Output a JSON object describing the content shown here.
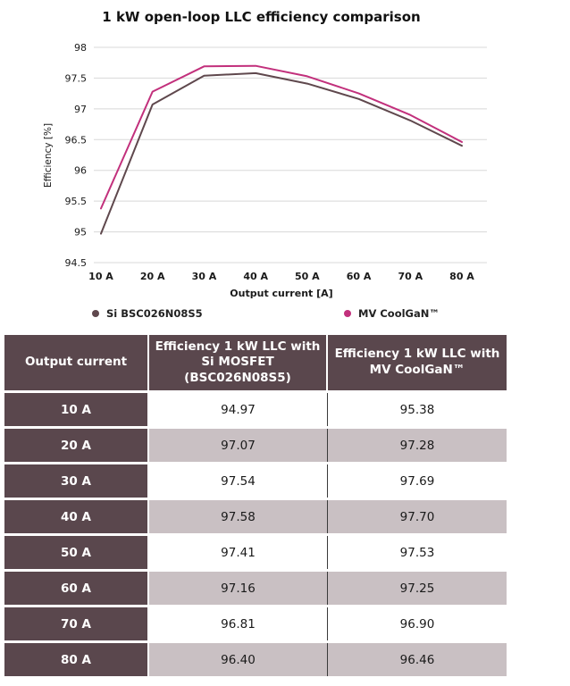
{
  "colors": {
    "si_series": "#5f484d",
    "gan_series": "#c2307c",
    "gridline": "#d8d8d8",
    "table_header_bg": "#5a474d",
    "table_alt_row_bg": "#c9c0c3",
    "table_divider": "#3a3a3a",
    "text_dark": "#1a1a1a"
  },
  "chart_data": {
    "type": "line",
    "title": "1 kW open-loop LLC efficiency comparison",
    "xlabel": "Output current [A]",
    "ylabel": "Efficiency [%]",
    "x": [
      10,
      20,
      30,
      40,
      50,
      60,
      70,
      80
    ],
    "x_tick_labels": [
      "10 A",
      "20 A",
      "30 A",
      "40 A",
      "50 A",
      "60 A",
      "70 A",
      "80 A"
    ],
    "yticks": [
      98,
      97.5,
      97,
      96.5,
      96,
      95.5,
      95,
      94.5
    ],
    "ylim": [
      94.5,
      98
    ],
    "grid": true,
    "legend_position": "bottom",
    "series": [
      {
        "name": "Si BSC026N08S5",
        "color": "#5f484d",
        "values": [
          94.97,
          97.07,
          97.54,
          97.58,
          97.41,
          97.16,
          96.81,
          96.4
        ]
      },
      {
        "name": "MV CoolGaN™",
        "color": "#c2307c",
        "values": [
          95.38,
          97.28,
          97.69,
          97.7,
          97.53,
          97.25,
          96.9,
          96.46
        ]
      }
    ]
  },
  "table": {
    "headers": [
      "Output current",
      "Efficiency 1 kW LLC with Si MOSFET (BSC026N08S5)",
      "Efficiency 1 kW LLC with MV CoolGaN™"
    ],
    "rows": [
      {
        "current": "10 A",
        "si": "94.97",
        "gan": "95.38"
      },
      {
        "current": "20 A",
        "si": "97.07",
        "gan": "97.28"
      },
      {
        "current": "30 A",
        "si": "97.54",
        "gan": "97.69"
      },
      {
        "current": "40 A",
        "si": "97.58",
        "gan": "97.70"
      },
      {
        "current": "50 A",
        "si": "97.41",
        "gan": "97.53"
      },
      {
        "current": "60 A",
        "si": "97.16",
        "gan": "97.25"
      },
      {
        "current": "70 A",
        "si": "96.81",
        "gan": "96.90"
      },
      {
        "current": "80 A",
        "si": "96.40",
        "gan": "96.46"
      }
    ]
  }
}
